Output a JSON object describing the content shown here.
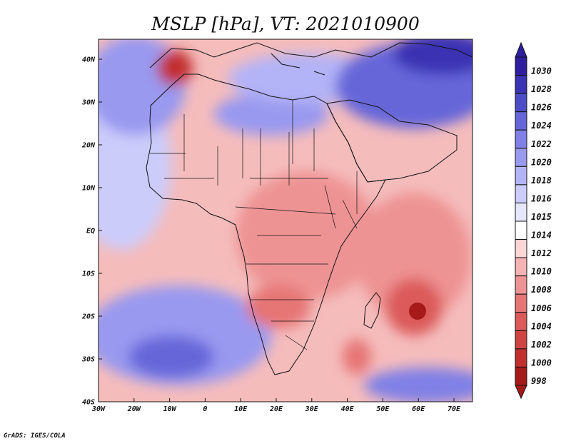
{
  "title": "MSLP [hPa], VT: 2021010900",
  "credit": "GrADS: IGES/COLA",
  "axes": {
    "x_ticks": [
      "30W",
      "20W",
      "10W",
      "0",
      "10E",
      "20E",
      "30E",
      "40E",
      "50E",
      "60E",
      "70E"
    ],
    "y_ticks": [
      "40S",
      "30S",
      "20S",
      "10S",
      "EQ",
      "10N",
      "20N",
      "30N",
      "40N"
    ]
  },
  "colorbar": {
    "levels": [
      "1030",
      "1028",
      "1026",
      "1024",
      "1022",
      "1020",
      "1018",
      "1016",
      "1015",
      "1014",
      "1012",
      "1010",
      "1008",
      "1006",
      "1004",
      "1002",
      "1000",
      "998"
    ],
    "colors": [
      "#2e1f9e",
      "#3a33b3",
      "#4d4dc7",
      "#6666d9",
      "#8080e6",
      "#9999f0",
      "#b3b3f7",
      "#ccccfb",
      "#e6e6fd",
      "#ffffff",
      "#fbd6d6",
      "#f5b3b3",
      "#ee9393",
      "#e67575",
      "#dc5a5a",
      "#d04343",
      "#c22f2f",
      "#a61a1a"
    ]
  },
  "field": {
    "variable": "MSLP",
    "units": "hPa",
    "valid_time": "2021010900",
    "lows": [
      {
        "name": "Madagascar low (east)",
        "value": 998
      },
      {
        "name": "Morocco low",
        "value": 1000
      },
      {
        "name": "Angola/Zambia low",
        "value": 1006
      }
    ],
    "highs": [
      {
        "name": "Iran/Arabia high",
        "value": 1028
      },
      {
        "name": "Sahara high",
        "value": 1022
      },
      {
        "name": "South Atlantic high",
        "value": 1024
      }
    ]
  }
}
